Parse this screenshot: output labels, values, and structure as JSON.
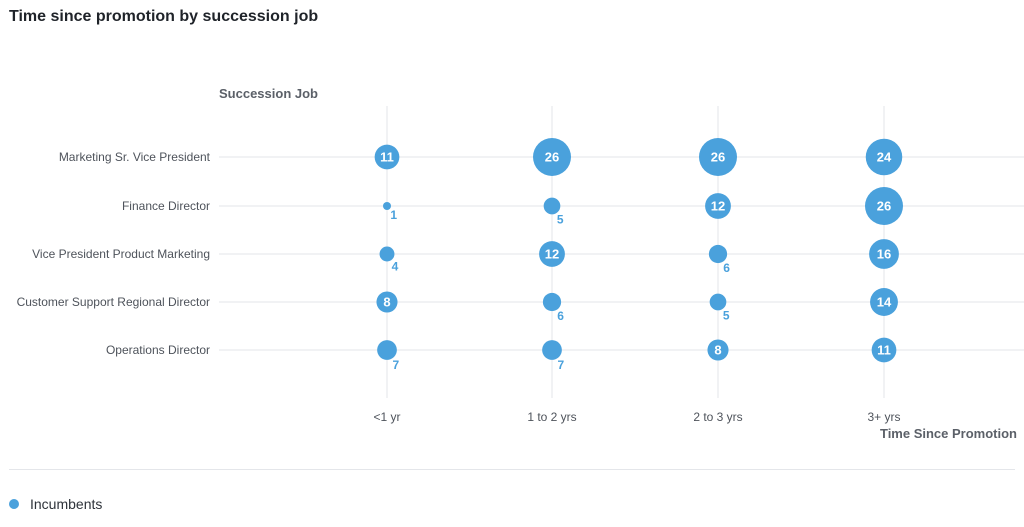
{
  "title": "Time since promotion by succession job",
  "chart_data": {
    "type": "scatter",
    "title": "Time since promotion by succession job",
    "ylabel": "Succession Job",
    "xlabel": "Time Since Promotion",
    "x_categories": [
      "<1 yr",
      "1 to 2 yrs",
      "2 to 3 yrs",
      "3+ yrs"
    ],
    "y_categories": [
      "Marketing Sr. Vice President",
      "Finance Director",
      "Vice President Product Marketing",
      "Customer Support Regional Director",
      "Operations Director"
    ],
    "series": [
      {
        "name": "Incumbents",
        "color": "#4aa1dc",
        "values": [
          [
            11,
            26,
            26,
            24
          ],
          [
            1,
            5,
            12,
            26
          ],
          [
            4,
            12,
            6,
            16
          ],
          [
            8,
            6,
            5,
            14
          ],
          [
            7,
            7,
            8,
            11
          ]
        ]
      }
    ],
    "grid": true,
    "legend": "bottom-left"
  },
  "legend": {
    "items": [
      {
        "label": "Incumbents",
        "color": "#4aa1dc"
      }
    ]
  }
}
